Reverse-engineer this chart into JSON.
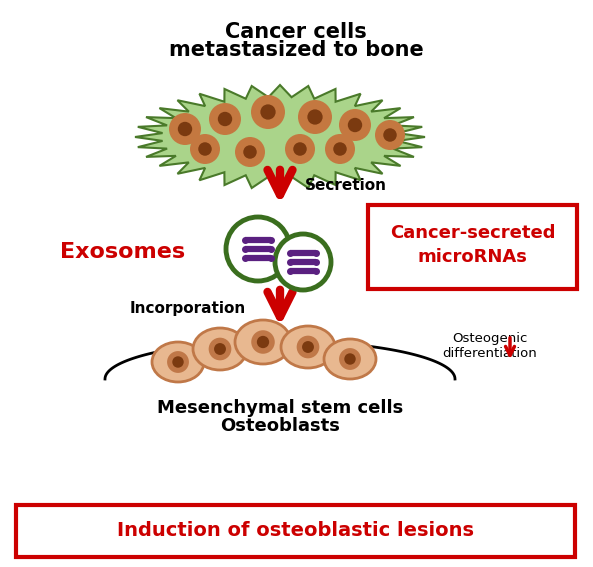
{
  "title_line1": "Cancer cells",
  "title_line2": "metastasized to bone",
  "title_fontsize": 15,
  "bg_color": "#ffffff",
  "secretion_label": "Secretion",
  "incorporation_label": "Incorporation",
  "exosomes_label": "Exosomes",
  "micrornas_label": "Cancer-secreted\nmicroRNAs",
  "msc_label1": "Mesenchymal stem cells",
  "msc_label2": "Osteoblasts",
  "osteogenic_label": "Osteogenic\ndifferentiation",
  "induction_label": "Induction of osteoblastic lesions",
  "red_color": "#cc0000",
  "dark_green_cell": "#4a7a2a",
  "light_green_cell": "#aad48a",
  "brown_outer": "#c47840",
  "brown_inner": "#7b3a10",
  "exosome_ring": "#3a6e1e",
  "mirna_purple": "#5a2080",
  "cell_fill": "#e8b890",
  "cell_outline": "#c07848",
  "cell_nucleus_outer": "#c07848",
  "cell_nucleus_inner": "#7b3a10",
  "black": "#000000"
}
